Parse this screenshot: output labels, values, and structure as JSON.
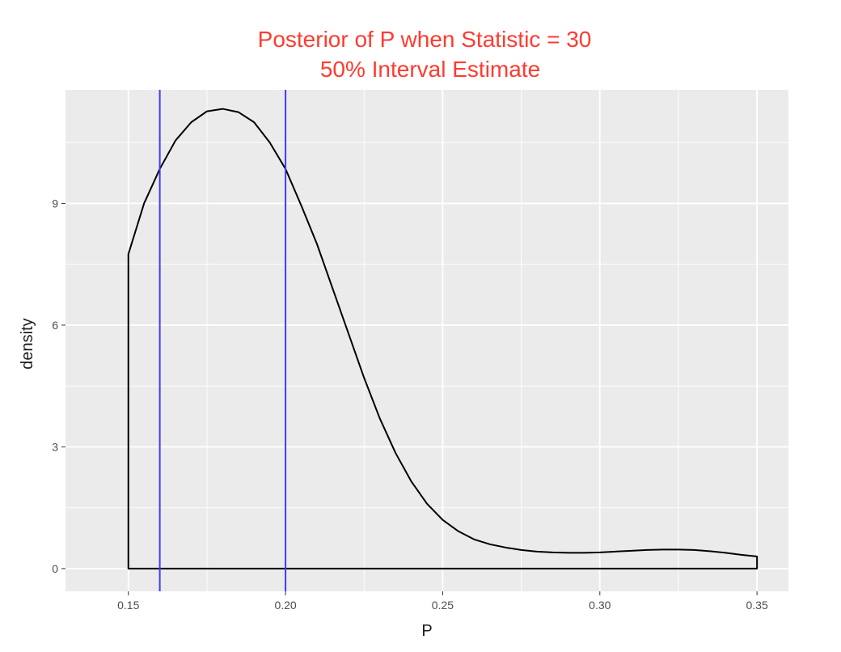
{
  "chart_data": {
    "type": "area",
    "title_lines": [
      "Posterior of P when Statistic = 30",
      "50% Interval Estimate"
    ],
    "title_color": "#ff3b30",
    "xlabel": "P",
    "ylabel": "density",
    "xlim": [
      0.13,
      0.36
    ],
    "ylim": [
      -0.56,
      11.8
    ],
    "x_ticks": [
      {
        "value": 0.15,
        "label": "0.15"
      },
      {
        "value": 0.2,
        "label": "0.20"
      },
      {
        "value": 0.25,
        "label": "0.25"
      },
      {
        "value": 0.3,
        "label": "0.30"
      },
      {
        "value": 0.35,
        "label": "0.35"
      }
    ],
    "y_ticks": [
      {
        "value": 0,
        "label": "0"
      },
      {
        "value": 3,
        "label": "3"
      },
      {
        "value": 6,
        "label": "6"
      },
      {
        "value": 9,
        "label": "9"
      }
    ],
    "x_minor": [
      0.175,
      0.225,
      0.275,
      0.325
    ],
    "y_minor": [
      1.5,
      4.5,
      7.5,
      10.5
    ],
    "grid": true,
    "panel_color": "#ebebeb",
    "series": [
      {
        "color": "#000000",
        "x": [
          0.15,
          0.155,
          0.16,
          0.165,
          0.17,
          0.175,
          0.18,
          0.185,
          0.19,
          0.195,
          0.2,
          0.205,
          0.21,
          0.215,
          0.22,
          0.225,
          0.23,
          0.235,
          0.24,
          0.245,
          0.25,
          0.255,
          0.26,
          0.265,
          0.27,
          0.275,
          0.28,
          0.285,
          0.29,
          0.295,
          0.3,
          0.305,
          0.31,
          0.315,
          0.32,
          0.325,
          0.33,
          0.335,
          0.34,
          0.345,
          0.35
        ],
        "y": [
          7.75,
          9.0,
          9.85,
          10.55,
          11.0,
          11.27,
          11.33,
          11.25,
          11.0,
          10.5,
          9.85,
          8.95,
          8.0,
          6.9,
          5.8,
          4.7,
          3.7,
          2.85,
          2.15,
          1.6,
          1.2,
          0.92,
          0.72,
          0.6,
          0.52,
          0.46,
          0.42,
          0.4,
          0.39,
          0.39,
          0.4,
          0.42,
          0.44,
          0.46,
          0.47,
          0.47,
          0.46,
          0.43,
          0.39,
          0.34,
          0.3
        ]
      }
    ],
    "vlines": [
      {
        "x": 0.16,
        "color": "#3b3bff"
      },
      {
        "x": 0.2,
        "color": "#3b3bff"
      }
    ]
  }
}
